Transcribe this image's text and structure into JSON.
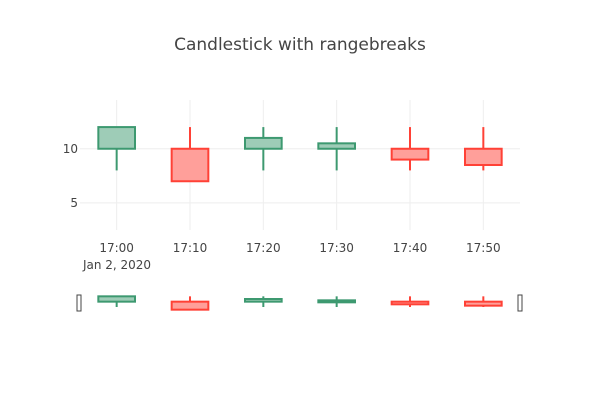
{
  "chart_data": {
    "type": "candlestick",
    "title": "Candlestick with rangebreaks",
    "x": [
      "17:00",
      "17:10",
      "17:20",
      "17:30",
      "17:40",
      "17:50"
    ],
    "x_date_label": "Jan 2, 2020",
    "open": [
      10,
      10,
      10,
      10,
      10,
      10
    ],
    "high": [
      12,
      12,
      12,
      12,
      12,
      12
    ],
    "low": [
      8,
      7,
      8,
      8,
      8,
      8
    ],
    "close": [
      12,
      7,
      11,
      10.5,
      9,
      8.5
    ],
    "ylim": [
      2.5,
      14.5
    ],
    "yticks": [
      5,
      10
    ],
    "ytick_labels": [
      "5",
      "10"
    ],
    "grid": true,
    "legend": "none",
    "increasing_color": "#3D9970",
    "increasing_fill": "#9ECCB7",
    "decreasing_color": "#FF4136",
    "decreasing_fill": "#FF9F9A",
    "rangeslider": true
  }
}
